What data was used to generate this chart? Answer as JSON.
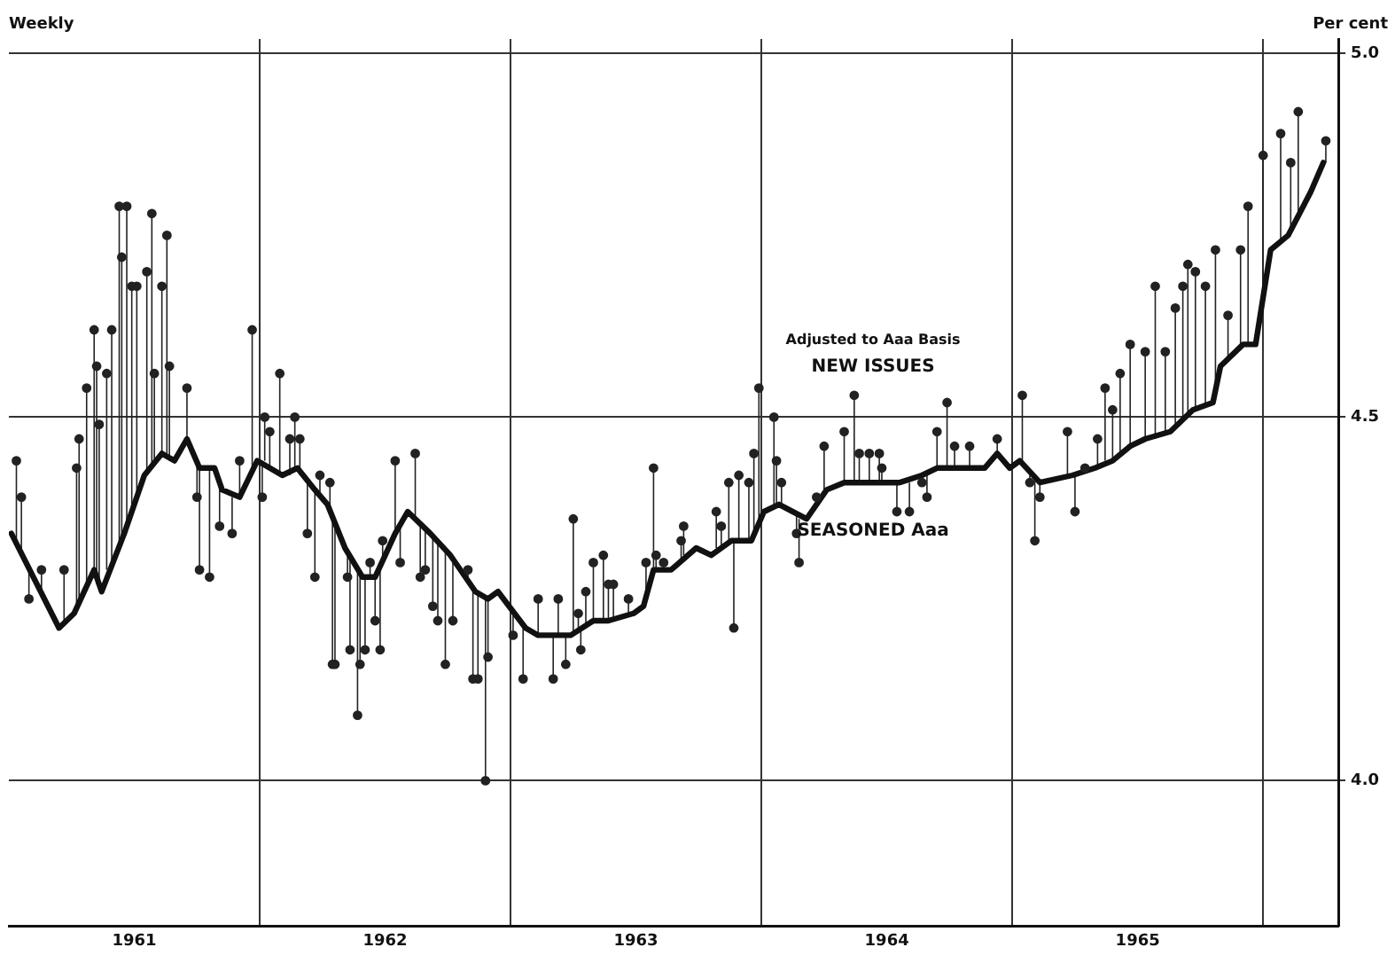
{
  "chart_data": {
    "type": "line",
    "subtitle": "Weekly",
    "ylabel": "Per cent",
    "annotations": [
      "Adjusted to Aaa Basis"
    ],
    "xlim": [
      1961,
      1966.3
    ],
    "xticks": [
      {
        "value": 1961.5,
        "label": "1961"
      },
      {
        "value": 1962,
        "label": null
      },
      {
        "value": 1962.5,
        "label": "1962"
      },
      {
        "value": 1963,
        "label": null
      },
      {
        "value": 1963.5,
        "label": "1963"
      },
      {
        "value": 1964,
        "label": null
      },
      {
        "value": 1964.5,
        "label": "1964"
      },
      {
        "value": 1965,
        "label": null
      },
      {
        "value": 1965.5,
        "label": "1965"
      },
      {
        "value": 1966,
        "label": null
      }
    ],
    "ylim": [
      3.8,
      5.02
    ],
    "yticks": [
      {
        "value": 4,
        "label": "4.0"
      },
      {
        "value": 4.5,
        "label": "4.5"
      },
      {
        "value": 5,
        "label": "5.0"
      }
    ],
    "grid": true,
    "marker": "circle",
    "series": [
      {
        "type": "line",
        "name": "SEASONED Aaa",
        "color": "#111111",
        "marker": "none",
        "x": [
          1961.01,
          1961.2,
          1961.26,
          1961.34,
          1961.37,
          1961.46,
          1961.54,
          1961.61,
          1961.66,
          1961.71,
          1961.76,
          1961.82,
          1961.85,
          1961.92,
          1961.99,
          1962.09,
          1962.15,
          1962.22,
          1962.27,
          1962.34,
          1962.41,
          1962.46,
          1962.54,
          1962.59,
          1962.68,
          1962.76,
          1962.86,
          1962.91,
          1962.95,
          1963.06,
          1963.11,
          1963.24,
          1963.33,
          1963.39,
          1963.49,
          1963.53,
          1963.57,
          1963.64,
          1963.74,
          1963.8,
          1963.88,
          1963.96,
          1964.01,
          1964.07,
          1964.18,
          1964.26,
          1964.33,
          1964.5,
          1964.55,
          1964.64,
          1964.7,
          1964.89,
          1964.94,
          1964.99,
          1965.03,
          1965.11,
          1965.24,
          1965.33,
          1965.4,
          1965.47,
          1965.53,
          1965.63,
          1965.72,
          1965.8,
          1965.83,
          1965.92,
          1965.97,
          1966.03,
          1966.1,
          1966.19,
          1966.24
        ],
        "values": [
          4.34,
          4.21,
          4.23,
          4.29,
          4.26,
          4.34,
          4.42,
          4.45,
          4.44,
          4.47,
          4.43,
          4.43,
          4.4,
          4.39,
          4.44,
          4.42,
          4.43,
          4.4,
          4.38,
          4.32,
          4.28,
          4.28,
          4.34,
          4.37,
          4.34,
          4.31,
          4.26,
          4.25,
          4.26,
          4.21,
          4.2,
          4.2,
          4.22,
          4.22,
          4.23,
          4.24,
          4.29,
          4.29,
          4.32,
          4.31,
          4.33,
          4.33,
          4.37,
          4.38,
          4.36,
          4.4,
          4.41,
          4.41,
          4.41,
          4.42,
          4.43,
          4.43,
          4.45,
          4.43,
          4.44,
          4.41,
          4.42,
          4.43,
          4.44,
          4.46,
          4.47,
          4.48,
          4.51,
          4.52,
          4.57,
          4.6,
          4.6,
          4.73,
          4.75,
          4.81,
          4.85
        ]
      },
      {
        "type": "scatter",
        "name": "NEW ISSUES",
        "color": "#222222",
        "x": [
          1961.03,
          1961.05,
          1961.08,
          1961.13,
          1961.22,
          1961.27,
          1961.28,
          1961.31,
          1961.34,
          1961.35,
          1961.36,
          1961.39,
          1961.41,
          1961.44,
          1961.45,
          1961.47,
          1961.49,
          1961.51,
          1961.55,
          1961.57,
          1961.58,
          1961.61,
          1961.63,
          1961.64,
          1961.71,
          1961.75,
          1961.76,
          1961.8,
          1961.84,
          1961.89,
          1961.92,
          1961.97,
          1962.01,
          1962.02,
          1962.04,
          1962.08,
          1962.12,
          1962.14,
          1962.16,
          1962.19,
          1962.22,
          1962.24,
          1962.28,
          1962.29,
          1962.3,
          1962.35,
          1962.36,
          1962.39,
          1962.4,
          1962.42,
          1962.44,
          1962.46,
          1962.48,
          1962.49,
          1962.54,
          1962.56,
          1962.62,
          1962.64,
          1962.66,
          1962.69,
          1962.71,
          1962.74,
          1962.77,
          1962.83,
          1962.85,
          1962.87,
          1962.9,
          1962.91,
          1963.01,
          1963.05,
          1963.11,
          1963.17,
          1963.19,
          1963.22,
          1963.25,
          1963.27,
          1963.28,
          1963.3,
          1963.33,
          1963.37,
          1963.39,
          1963.41,
          1963.47,
          1963.54,
          1963.57,
          1963.58,
          1963.61,
          1963.68,
          1963.69,
          1963.82,
          1963.84,
          1963.87,
          1963.89,
          1963.91,
          1963.95,
          1963.97,
          1963.99,
          1964.05,
          1964.06,
          1964.08,
          1964.14,
          1964.15,
          1964.22,
          1964.25,
          1964.33,
          1964.37,
          1964.39,
          1964.43,
          1964.47,
          1964.48,
          1964.54,
          1964.59,
          1964.64,
          1964.66,
          1964.7,
          1964.74,
          1964.77,
          1964.83,
          1964.94,
          1965.04,
          1965.07,
          1965.09,
          1965.11,
          1965.22,
          1965.25,
          1965.29,
          1965.34,
          1965.37,
          1965.4,
          1965.43,
          1965.47,
          1965.53,
          1965.57,
          1965.61,
          1965.65,
          1965.68,
          1965.7,
          1965.73,
          1965.77,
          1965.81,
          1965.86,
          1965.91,
          1965.94,
          1966,
          1966.07,
          1966.11,
          1966.14,
          1966.25
        ],
        "values": [
          4.44,
          4.39,
          4.25,
          4.29,
          4.29,
          4.43,
          4.47,
          4.54,
          4.62,
          4.57,
          4.49,
          4.56,
          4.62,
          4.79,
          4.72,
          4.79,
          4.68,
          4.68,
          4.7,
          4.78,
          4.56,
          4.68,
          4.75,
          4.57,
          4.54,
          4.39,
          4.29,
          4.28,
          4.35,
          4.34,
          4.44,
          4.62,
          4.39,
          4.5,
          4.48,
          4.56,
          4.47,
          4.5,
          4.47,
          4.34,
          4.28,
          4.42,
          4.41,
          4.16,
          4.16,
          4.28,
          4.18,
          4.09,
          4.16,
          4.18,
          4.3,
          4.22,
          4.18,
          4.33,
          4.44,
          4.3,
          4.45,
          4.28,
          4.29,
          4.24,
          4.22,
          4.16,
          4.22,
          4.29,
          4.14,
          4.14,
          4.0,
          4.17,
          4.2,
          4.14,
          4.25,
          4.14,
          4.25,
          4.16,
          4.36,
          4.23,
          4.18,
          4.26,
          4.3,
          4.31,
          4.27,
          4.27,
          4.25,
          4.3,
          4.43,
          4.31,
          4.3,
          4.33,
          4.35,
          4.37,
          4.35,
          4.41,
          4.21,
          4.42,
          4.41,
          4.45,
          4.54,
          4.5,
          4.44,
          4.41,
          4.34,
          4.3,
          4.39,
          4.46,
          4.48,
          4.53,
          4.45,
          4.45,
          4.45,
          4.43,
          4.37,
          4.37,
          4.41,
          4.39,
          4.48,
          4.52,
          4.46,
          4.46,
          4.47,
          4.53,
          4.41,
          4.33,
          4.39,
          4.48,
          4.37,
          4.43,
          4.47,
          4.54,
          4.51,
          4.56,
          4.6,
          4.59,
          4.68,
          4.59,
          4.65,
          4.68,
          4.71,
          4.7,
          4.68,
          4.73,
          4.64,
          4.73,
          4.79,
          4.86,
          4.89,
          4.85,
          4.92,
          4.88
        ],
        "errors": [
          [
            4.33,
            4.44
          ],
          [
            4.31,
            4.39
          ],
          [
            4.25,
            4.29
          ],
          [
            4.26,
            4.29
          ],
          [
            4.22,
            4.29
          ],
          [
            4.24,
            4.43
          ],
          [
            4.245,
            4.47
          ],
          [
            4.27,
            4.54
          ],
          [
            4.29,
            4.62
          ],
          [
            4.27,
            4.57
          ],
          [
            4.265,
            4.49
          ],
          [
            4.29,
            4.56
          ],
          [
            4.3,
            4.62
          ],
          [
            4.32,
            4.79
          ],
          [
            4.33,
            4.72
          ],
          [
            4.35,
            4.79
          ],
          [
            4.37,
            4.68
          ],
          [
            4.39,
            4.68
          ],
          [
            4.42,
            4.7
          ],
          [
            4.43,
            4.78
          ],
          [
            4.44,
            4.56
          ],
          [
            4.45,
            4.68
          ],
          [
            4.45,
            4.75
          ],
          [
            4.44,
            4.57
          ],
          [
            4.47,
            4.54
          ],
          [
            4.39,
            4.44
          ],
          [
            4.29,
            4.43
          ],
          [
            4.28,
            4.43
          ],
          [
            4.35,
            4.41
          ],
          [
            4.34,
            4.39
          ],
          [
            4.39,
            4.44
          ],
          [
            4.43,
            4.62
          ],
          [
            4.39,
            4.44
          ],
          [
            4.44,
            4.5
          ],
          [
            4.43,
            4.48
          ],
          [
            4.42,
            4.56
          ],
          [
            4.42,
            4.47
          ],
          [
            4.43,
            4.5
          ],
          [
            4.42,
            4.47
          ],
          [
            4.34,
            4.41
          ],
          [
            4.28,
            4.4
          ],
          [
            4.39,
            4.42
          ],
          [
            4.37,
            4.41
          ],
          [
            4.16,
            4.36
          ],
          [
            4.16,
            4.35
          ],
          [
            4.28,
            4.31
          ],
          [
            4.18,
            4.31
          ],
          [
            4.09,
            4.29
          ],
          [
            4.16,
            4.29
          ],
          [
            4.18,
            4.28
          ],
          [
            4.28,
            4.3
          ],
          [
            4.22,
            4.28
          ],
          [
            4.18,
            4.3
          ],
          [
            4.3,
            4.33
          ],
          [
            4.34,
            4.44
          ],
          [
            4.3,
            4.35
          ],
          [
            4.36,
            4.45
          ],
          [
            4.28,
            4.35
          ],
          [
            4.29,
            4.35
          ],
          [
            4.24,
            4.34
          ],
          [
            4.22,
            4.33
          ],
          [
            4.16,
            4.32
          ],
          [
            4.22,
            4.31
          ],
          [
            4.28,
            4.29
          ],
          [
            4.14,
            4.26
          ],
          [
            4.14,
            4.26
          ],
          [
            4.0,
            4.25
          ],
          [
            4.17,
            4.25
          ],
          [
            4.2,
            4.23
          ],
          [
            4.14,
            4.21
          ],
          [
            4.2,
            4.25
          ],
          [
            4.14,
            4.2
          ],
          [
            4.2,
            4.25
          ],
          [
            4.16,
            4.2
          ],
          [
            4.2,
            4.36
          ],
          [
            4.21,
            4.23
          ],
          [
            4.18,
            4.21
          ],
          [
            4.21,
            4.26
          ],
          [
            4.22,
            4.3
          ],
          [
            4.22,
            4.31
          ],
          [
            4.22,
            4.27
          ],
          [
            4.22,
            4.27
          ],
          [
            4.23,
            4.25
          ],
          [
            4.25,
            4.3
          ],
          [
            4.29,
            4.43
          ],
          [
            4.29,
            4.31
          ],
          [
            4.29,
            4.3
          ],
          [
            4.3,
            4.33
          ],
          [
            4.31,
            4.35
          ],
          [
            4.32,
            4.37
          ],
          [
            4.32,
            4.35
          ],
          [
            4.33,
            4.41
          ],
          [
            4.21,
            4.33
          ],
          [
            4.33,
            4.42
          ],
          [
            4.33,
            4.41
          ],
          [
            4.34,
            4.45
          ],
          [
            4.35,
            4.54
          ],
          [
            4.38,
            4.5
          ],
          [
            4.38,
            4.44
          ],
          [
            4.38,
            4.41
          ],
          [
            4.34,
            4.37
          ],
          [
            4.3,
            4.36
          ],
          [
            4.38,
            4.39
          ],
          [
            4.39,
            4.46
          ],
          [
            4.41,
            4.48
          ],
          [
            4.41,
            4.53
          ],
          [
            4.41,
            4.45
          ],
          [
            4.41,
            4.45
          ],
          [
            4.41,
            4.45
          ],
          [
            4.41,
            4.43
          ],
          [
            4.37,
            4.41
          ],
          [
            4.37,
            4.41
          ],
          [
            4.41,
            4.42
          ],
          [
            4.39,
            4.42
          ],
          [
            4.43,
            4.48
          ],
          [
            4.43,
            4.52
          ],
          [
            4.43,
            4.46
          ],
          [
            4.43,
            4.46
          ],
          [
            4.45,
            4.47
          ],
          [
            4.44,
            4.53
          ],
          [
            4.41,
            4.42
          ],
          [
            4.33,
            4.42
          ],
          [
            4.39,
            4.41
          ],
          [
            4.42,
            4.48
          ],
          [
            4.37,
            4.42
          ],
          [
            4.43,
            4.43
          ],
          [
            4.43,
            4.47
          ],
          [
            4.44,
            4.54
          ],
          [
            4.44,
            4.51
          ],
          [
            4.45,
            4.56
          ],
          [
            4.46,
            4.6
          ],
          [
            4.47,
            4.59
          ],
          [
            4.47,
            4.68
          ],
          [
            4.48,
            4.59
          ],
          [
            4.49,
            4.65
          ],
          [
            4.5,
            4.68
          ],
          [
            4.5,
            4.71
          ],
          [
            4.51,
            4.7
          ],
          [
            4.52,
            4.68
          ],
          [
            4.54,
            4.73
          ],
          [
            4.58,
            4.64
          ],
          [
            4.6,
            4.73
          ],
          [
            4.6,
            4.79
          ],
          [
            4.67,
            4.86
          ],
          [
            4.74,
            4.89
          ],
          [
            4.76,
            4.85
          ],
          [
            4.78,
            4.92
          ],
          [
            4.85,
            4.88
          ]
        ]
      }
    ]
  }
}
